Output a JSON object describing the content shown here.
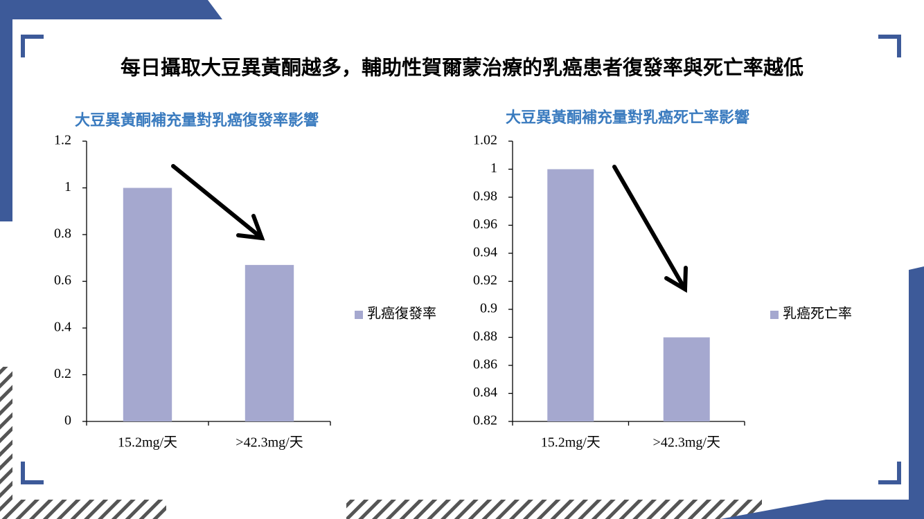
{
  "title": "每日攝取大豆異黃酮越多，輔助性賀爾蒙治療的乳癌患者復發率與死亡率越低",
  "chart_data": [
    {
      "type": "bar",
      "title": "大豆異黃酮補充量對乳癌復發率影響",
      "categories": [
        "15.2mg/天",
        ">42.3mg/天"
      ],
      "series": [
        {
          "name": "乳癌復發率",
          "color": "#a5a8cf",
          "values": [
            1,
            0.67
          ]
        }
      ],
      "ylim": [
        0,
        1.2
      ],
      "yticks": [
        0,
        0.2,
        0.4,
        0.6,
        0.8,
        1,
        1.2
      ],
      "legend": "right"
    },
    {
      "type": "bar",
      "title": "大豆異黃酮補充量對乳癌死亡率影響",
      "categories": [
        "15.2mg/天",
        ">42.3mg/天"
      ],
      "series": [
        {
          "name": "乳癌死亡率",
          "color": "#a5a8cf",
          "values": [
            1,
            0.88
          ]
        }
      ],
      "ylim": [
        0.82,
        1.02
      ],
      "yticks": [
        0.82,
        0.84,
        0.86,
        0.88,
        0.9,
        0.92,
        0.94,
        0.96,
        0.98,
        1,
        1.02
      ],
      "legend": "right"
    }
  ]
}
